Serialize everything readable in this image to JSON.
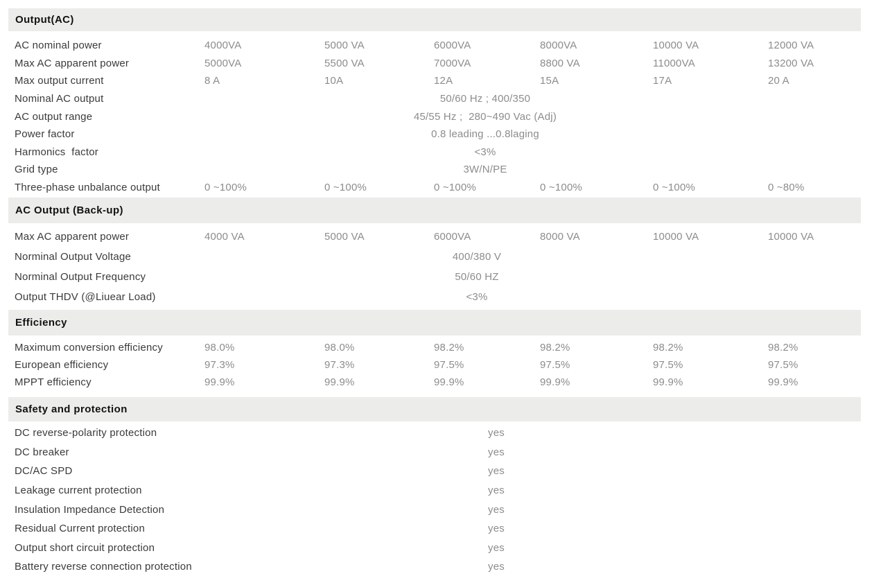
{
  "colors": {
    "page_background": "#ffffff",
    "section_band_background": "#ececea",
    "section_title_color": "#121212",
    "row_label_color": "#3a3a3a",
    "value_color": "#8c8c8c"
  },
  "sections": [
    {
      "title": "Output(AC)",
      "rows": [
        {
          "label": "AC nominal power",
          "values": [
            "4000VA",
            "5000 VA",
            "6000VA",
            "8000VA",
            "10000 VA",
            "12000 VA"
          ]
        },
        {
          "label": "Max AC apparent power",
          "values": [
            "5000VA",
            "5500 VA",
            "7000VA",
            "8800 VA",
            "11000VA",
            "13200 VA"
          ]
        },
        {
          "label": "Max output current",
          "values": [
            "8 A",
            "10A",
            "12A",
            "15A",
            "17A",
            "20 A"
          ]
        },
        {
          "label": "Nominal AC output",
          "merged": "50/60 Hz ; 400/350"
        },
        {
          "label": "AC output range",
          "merged": "45/55 Hz ;  280~490 Vac (Adj)"
        },
        {
          "label": "Power factor",
          "merged": "0.8 leading ...0.8laging"
        },
        {
          "label": "Harmonics  factor",
          "merged": "<3%"
        },
        {
          "label": "Grid type",
          "merged": "3W/N/PE"
        },
        {
          "label": "Three-phase unbalance output",
          "values": [
            "0 ~100%",
            "0 ~100%",
            "0 ~100%",
            "0 ~100%",
            "0 ~100%",
            "0 ~80%"
          ]
        }
      ]
    },
    {
      "title": "AC Output (Back-up)",
      "rows": [
        {
          "label": "Max AC apparent power",
          "values": [
            "4000 VA",
            "5000 VA",
            "6000VA",
            "8000 VA",
            "10000 VA",
            "10000 VA"
          ]
        },
        {
          "label": "Norminal Output Voltage",
          "merged": "400/380 V"
        },
        {
          "label": "Norminal Output Frequency",
          "merged": "50/60 HZ"
        },
        {
          "label": "Output THDV (@Liuear Load)",
          "merged": "<3%"
        }
      ]
    },
    {
      "title": "Efficiency",
      "rows": [
        {
          "label": "Maximum conversion efficiency",
          "values": [
            "98.0%",
            "98.0%",
            "98.2%",
            "98.2%",
            "98.2%",
            "98.2%"
          ]
        },
        {
          "label": "European efficiency",
          "values": [
            "97.3%",
            "97.3%",
            "97.5%",
            "97.5%",
            "97.5%",
            "97.5%"
          ]
        },
        {
          "label": "MPPT efficiency",
          "values": [
            "99.9%",
            "99.9%",
            "99.9%",
            "99.9%",
            "99.9%",
            "99.9%"
          ]
        }
      ]
    },
    {
      "title": "Safety and protection",
      "rows": [
        {
          "label": "DC reverse-polarity protection",
          "merged": "yes"
        },
        {
          "label": "DC breaker",
          "merged": "yes"
        },
        {
          "label": "DC/AC SPD",
          "merged": "yes"
        },
        {
          "label": "Leakage current protection",
          "merged": "yes"
        },
        {
          "label": "Insulation Impedance Detection",
          "merged": "yes"
        },
        {
          "label": "Residual Current protection",
          "merged": "yes"
        },
        {
          "label": "Output short circuit protection",
          "merged": "yes"
        },
        {
          "label": "Battery reverse connection protection",
          "merged": "yes"
        }
      ]
    }
  ]
}
